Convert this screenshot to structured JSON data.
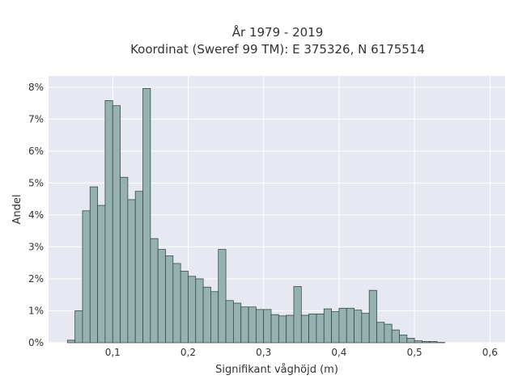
{
  "chart_data": {
    "type": "bar",
    "title_lines": [
      "År 1979 - 2019",
      "Koordinat (Sweref 99 TM): E 375326, N 6175514"
    ],
    "xlabel": "Signifikant våghöjd (m)",
    "ylabel": "Andel",
    "xlim": [
      0.015,
      0.62
    ],
    "ylim": [
      0,
      0.0835
    ],
    "x_ticks": [
      0.1,
      0.2,
      0.3,
      0.4,
      0.5,
      0.6
    ],
    "x_tick_labels": [
      "0,1",
      "0,2",
      "0,3",
      "0,4",
      "0,5",
      "0,6"
    ],
    "y_ticks": [
      0,
      0.01,
      0.02,
      0.03,
      0.04,
      0.05,
      0.06,
      0.07,
      0.08
    ],
    "y_tick_labels": [
      "0%",
      "1%",
      "2%",
      "3%",
      "4%",
      "5%",
      "6%",
      "7%",
      "8%"
    ],
    "grid": true,
    "colors": {
      "plot_bg": "#e6e9f2",
      "grid": "#ffffff",
      "bar_fill": "#96b2b0",
      "bar_edge": "#3a4a48"
    },
    "bin_start": 0.04,
    "bin_width": 0.01,
    "values": [
      0.0008,
      0.01,
      0.0413,
      0.0488,
      0.043,
      0.0758,
      0.0742,
      0.0518,
      0.0448,
      0.0474,
      0.0796,
      0.0326,
      0.0292,
      0.0272,
      0.0248,
      0.0224,
      0.0208,
      0.02,
      0.0174,
      0.016,
      0.0292,
      0.0132,
      0.0124,
      0.0112,
      0.0112,
      0.0104,
      0.0104,
      0.0088,
      0.0084,
      0.0086,
      0.0176,
      0.0086,
      0.009,
      0.009,
      0.0106,
      0.0098,
      0.0108,
      0.0108,
      0.0102,
      0.0092,
      0.0164,
      0.0064,
      0.0058,
      0.004,
      0.0024,
      0.0014,
      0.0006,
      0.0004,
      0.0004,
      0.0001
    ]
  }
}
